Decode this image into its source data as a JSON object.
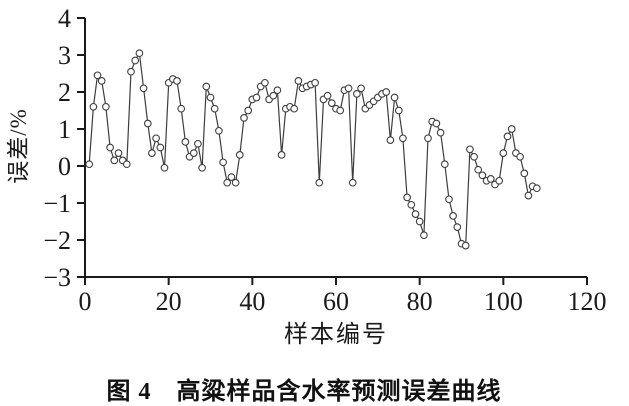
{
  "figure": {
    "caption": "图 4　高粱样品含水率预测误差曲线"
  },
  "chart_data": {
    "type": "line",
    "title": "",
    "xlabel": "样本编号",
    "ylabel": "误差/%",
    "xlim": [
      0,
      120
    ],
    "ylim": [
      -3,
      4
    ],
    "xticks": [
      0,
      20,
      40,
      60,
      80,
      100,
      120
    ],
    "yticks": [
      -3,
      -2,
      -1,
      0,
      1,
      2,
      3,
      4
    ],
    "xtick_labels": [
      "0",
      "20",
      "40",
      "60",
      "80",
      "100",
      "120"
    ],
    "ytick_labels": [
      "−3",
      "−2",
      "−1",
      "0",
      "1",
      "2",
      "3",
      "4"
    ],
    "grid": false,
    "legend": null,
    "marker": "open-circle",
    "line_color": "#3d3d3d",
    "marker_fill": "#ffffff",
    "axis_color": "#1a1a1a",
    "x_start": 1,
    "x_step": 1,
    "n_points": 108,
    "values": [
      0.05,
      1.6,
      2.45,
      2.3,
      1.6,
      0.5,
      0.15,
      0.35,
      0.15,
      0.05,
      2.55,
      2.85,
      3.05,
      2.1,
      1.15,
      0.35,
      0.75,
      0.5,
      -0.05,
      2.25,
      2.35,
      2.3,
      1.55,
      0.65,
      0.25,
      0.35,
      0.6,
      -0.05,
      2.15,
      1.85,
      1.55,
      0.95,
      0.1,
      -0.45,
      -0.3,
      -0.45,
      0.3,
      1.3,
      1.5,
      1.8,
      1.85,
      2.15,
      2.25,
      1.8,
      1.9,
      2.05,
      0.3,
      1.55,
      1.6,
      1.55,
      2.3,
      2.1,
      2.15,
      2.2,
      2.25,
      -0.45,
      1.8,
      1.9,
      1.7,
      1.55,
      1.5,
      2.05,
      2.1,
      -0.45,
      1.95,
      2.1,
      1.55,
      1.65,
      1.75,
      1.85,
      1.95,
      2.0,
      0.7,
      1.85,
      1.5,
      0.75,
      -0.85,
      -1.05,
      -1.3,
      -1.5,
      -1.87,
      0.75,
      1.2,
      1.15,
      0.9,
      0.05,
      -0.9,
      -1.35,
      -1.65,
      -2.1,
      -2.15,
      0.45,
      0.25,
      -0.1,
      -0.25,
      -0.4,
      -0.35,
      -0.5,
      -0.4,
      0.35,
      0.8,
      1.0,
      0.35,
      0.25,
      -0.2,
      -0.8,
      -0.55,
      -0.6
    ]
  }
}
